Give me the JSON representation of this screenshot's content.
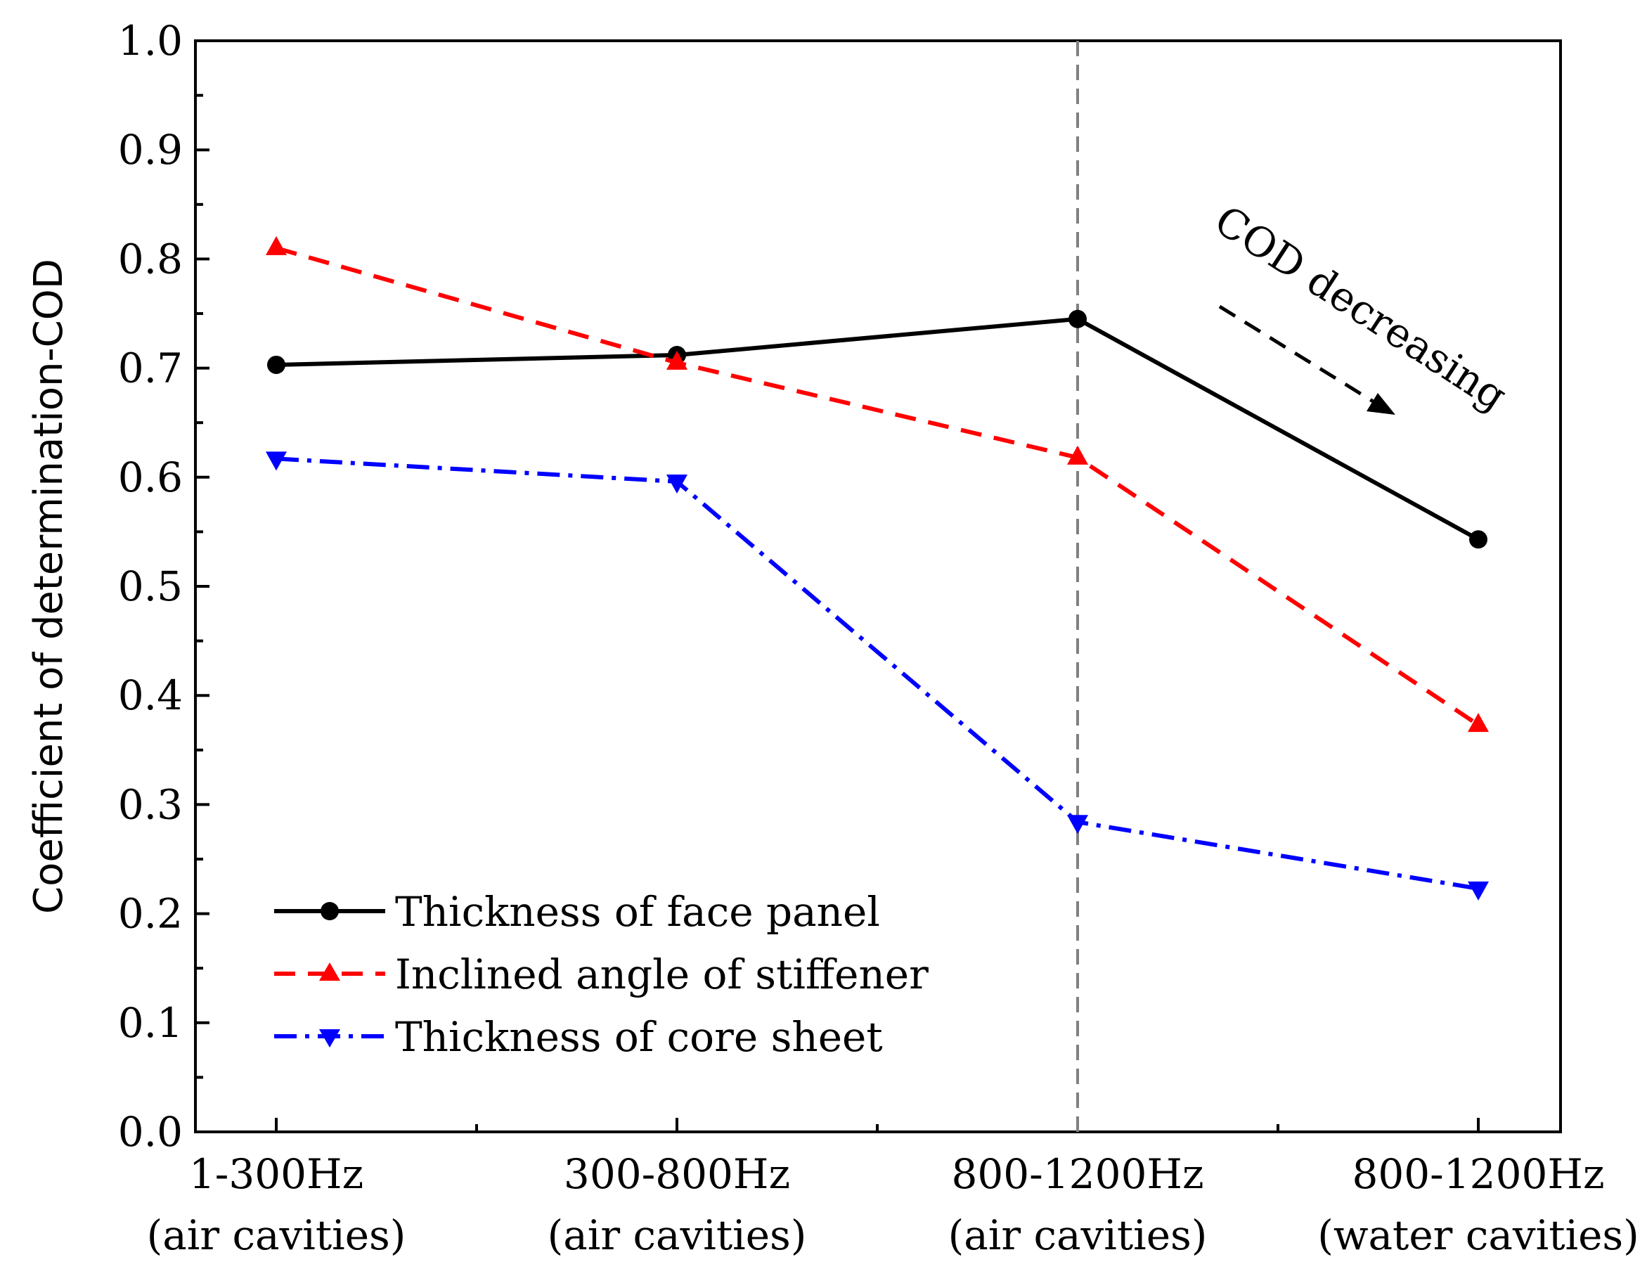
{
  "chart_data": {
    "type": "line",
    "title": "",
    "xlabel": "",
    "ylabel": "Coefficient of determination-COD",
    "ylim": [
      0.0,
      1.0
    ],
    "yticks": [
      "0.0",
      "0.1",
      "0.2",
      "0.3",
      "0.4",
      "0.5",
      "0.6",
      "0.7",
      "0.8",
      "0.9",
      "1.0"
    ],
    "categories": [
      {
        "line1": "1-300Hz",
        "line2": "(air cavities)"
      },
      {
        "line1": "300-800Hz",
        "line2": "(air cavities)"
      },
      {
        "line1": "800-1200Hz",
        "line2": "(air cavities)"
      },
      {
        "line1": "800-1200Hz",
        "line2": "(water cavities)"
      }
    ],
    "series": [
      {
        "name": "Thickness of face panel",
        "color": "#000000",
        "dash": "solid",
        "marker": "circle",
        "values": [
          0.703,
          0.712,
          0.745,
          0.543
        ]
      },
      {
        "name": "Inclined angle of stiffener",
        "color": "#ff0000",
        "dash": "dashed",
        "marker": "triangle-up",
        "values": [
          0.81,
          0.705,
          0.618,
          0.373
        ]
      },
      {
        "name": "Thickness of core sheet",
        "color": "#0000ff",
        "dash": "dash-dot",
        "marker": "triangle-down",
        "values": [
          0.617,
          0.596,
          0.284,
          0.223
        ]
      }
    ],
    "vline_category_index": 2,
    "annotation": "COD decreasing",
    "legend_position": "bottom-left"
  }
}
